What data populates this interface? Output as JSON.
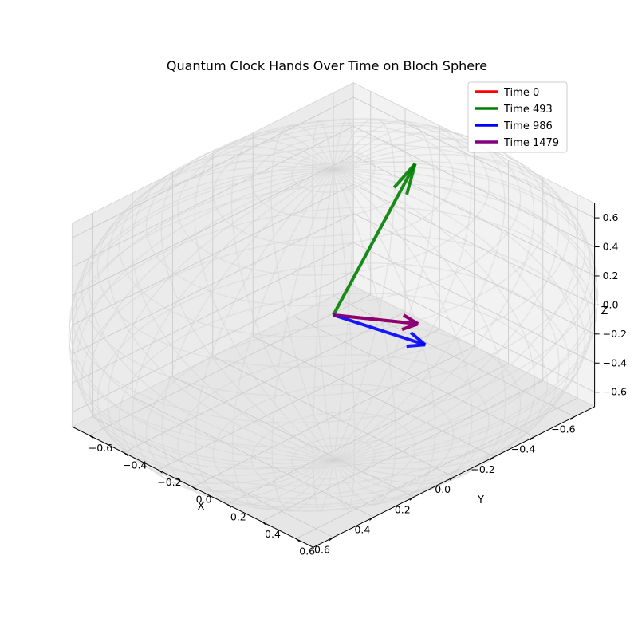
{
  "chart_data": {
    "type": "3d-line",
    "title": "Quantum Clock Hands Over Time on Bloch Sphere",
    "xlabel": "X",
    "ylabel": "Y",
    "zlabel": "Z",
    "xlim": [
      -0.7,
      0.7
    ],
    "ylim": [
      -0.7,
      0.7
    ],
    "zlim": [
      -0.7,
      0.7
    ],
    "xticks": [
      "−0.6",
      "−0.4",
      "−0.2",
      "0.0",
      "0.2",
      "0.4",
      "0.6"
    ],
    "yticks": [
      "−0.6",
      "−0.4",
      "−0.2",
      "0.0",
      "0.2",
      "0.4",
      "0.6"
    ],
    "zticks": [
      "−0.6",
      "−0.4",
      "−0.2",
      "0.0",
      "0.2",
      "0.4",
      "0.6"
    ],
    "grid": true,
    "legend_position": "top-right",
    "sphere": {
      "radius": 1.0,
      "color": "#d3d3d3"
    },
    "series": [
      {
        "name": "Time 0",
        "color": "#ff0000",
        "vector": [
          0.05,
          0.55,
          0.3
        ]
      },
      {
        "name": "Time 493",
        "color": "#008000",
        "vector": [
          -0.45,
          -0.05,
          0.7
        ]
      },
      {
        "name": "Time 986",
        "color": "#0000ff",
        "vector": [
          0.1,
          0.65,
          0.25
        ]
      },
      {
        "name": "Time 1479",
        "color": "#800080",
        "vector": [
          0.05,
          0.55,
          0.3
        ]
      }
    ]
  }
}
